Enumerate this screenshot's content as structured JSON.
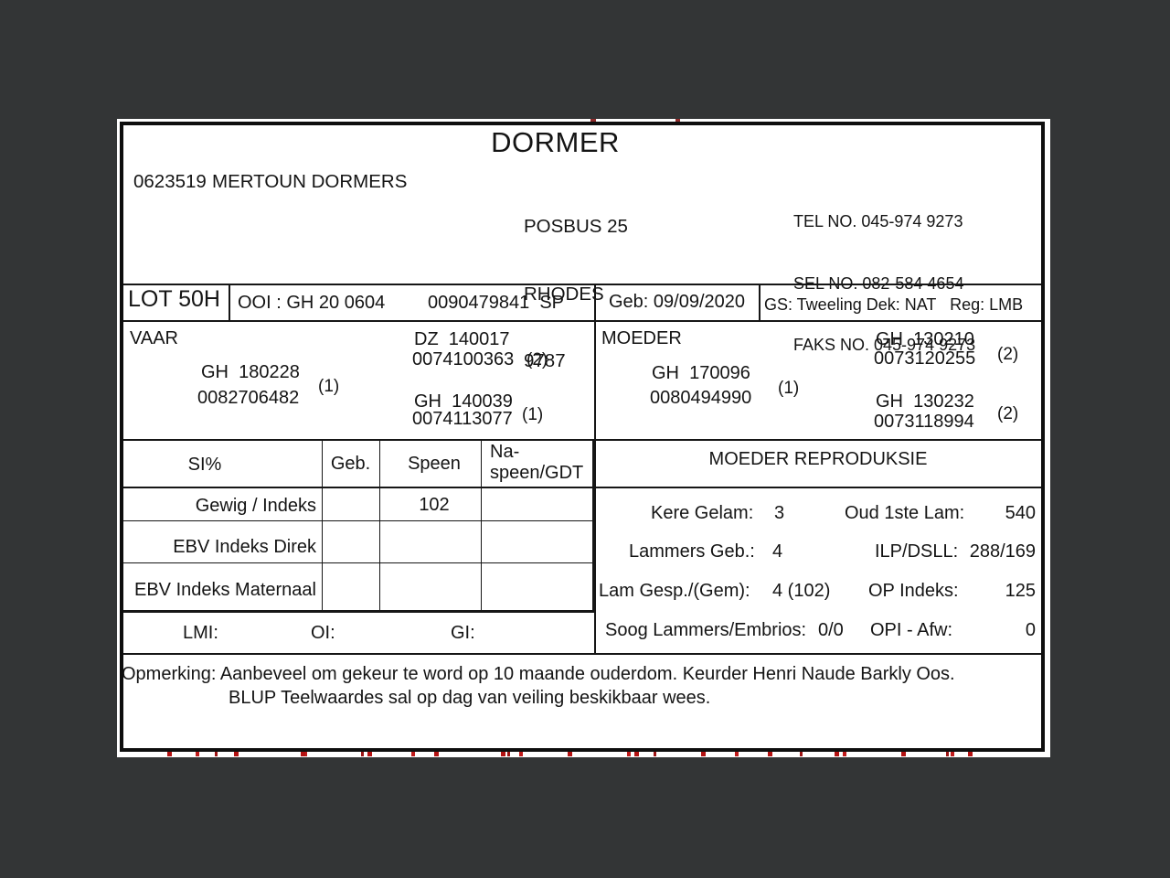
{
  "canvas": {
    "background_color": "#333536",
    "paper_color": "#ffffff",
    "ink_color": "#141414",
    "artifact_red": "#b31212"
  },
  "header": {
    "breed_title": "DORMER",
    "member_number": "0623519",
    "stud_name": "MERTOUN DORMERS",
    "address_lines": [
      "POSBUS 25",
      "RHODES",
      "9787"
    ],
    "contact_lines": [
      "TEL NO. 045-974 9273",
      "SEL NO. 082-584 4654",
      "FAKS NO. 045-974 9273"
    ]
  },
  "lot": {
    "lot_number": "LOT 50H",
    "animal": "OOI : GH 20 0604",
    "registration": "0090479841  SP",
    "birth": "Geb: 09/09/2020",
    "status": "GS: Tweeling Dek: NAT   Reg: LMB"
  },
  "pedigree": {
    "sire": {
      "label": "VAAR",
      "id1": "GH  180228",
      "id2": "0082706482",
      "note": "(1)",
      "grandparents": [
        {
          "id1": "DZ  140017",
          "id2": "0074100363",
          "note": "(2)"
        },
        {
          "id1": "GH  140039",
          "id2": "0074113077",
          "note": "(1)"
        }
      ]
    },
    "dam": {
      "label": "MOEDER",
      "id1": "GH  170096",
      "id2": "0080494990",
      "note": "(1)",
      "grandparents": [
        {
          "id1": "GH  130210",
          "id2": "0073120255",
          "note": "(2)"
        },
        {
          "id1": "GH  130232",
          "id2": "0073118994",
          "note": "(2)"
        }
      ]
    }
  },
  "si_table": {
    "headers": [
      "SI%",
      "Geb.",
      "Speen",
      "Na-\nspeen/GDT"
    ],
    "rows": [
      {
        "label": "Gewig / Indeks",
        "geb": "",
        "speen": "102",
        "naspeen": ""
      },
      {
        "label": "EBV Indeks Direk",
        "geb": "",
        "speen": "",
        "naspeen": ""
      },
      {
        "label": "EBV Indeks Maternaal",
        "geb": "",
        "speen": "",
        "naspeen": ""
      }
    ],
    "footer_labels": [
      "LMI:",
      "OI:",
      "GI:"
    ]
  },
  "reproduction": {
    "title": "MOEDER REPRODUKSIE",
    "rows": [
      {
        "l_label": "Kere Gelam:",
        "l_value": "3",
        "r_label": "Oud 1ste Lam:",
        "r_value": "540"
      },
      {
        "l_label": "Lammers Geb.:",
        "l_value": "4",
        "r_label": "ILP/DSLL:",
        "r_value": "288/169"
      },
      {
        "l_label": "Lam Gesp./(Gem):",
        "l_value": "4 (102)",
        "r_label": "OP Indeks:",
        "r_value": "125"
      },
      {
        "l_label": "Soog Lammers/Embrios:",
        "l_value": "0/0",
        "r_label": "OPI - Afw:",
        "r_value": "0"
      }
    ]
  },
  "remark": {
    "line1": "Opmerking: Aanbeveel om gekeur te word op 10 maande ouderdom. Keurder Henri Naude Barkly Oos.",
    "line2": "BLUP Teelwaardes sal op dag van veiling beskikbaar wees."
  }
}
